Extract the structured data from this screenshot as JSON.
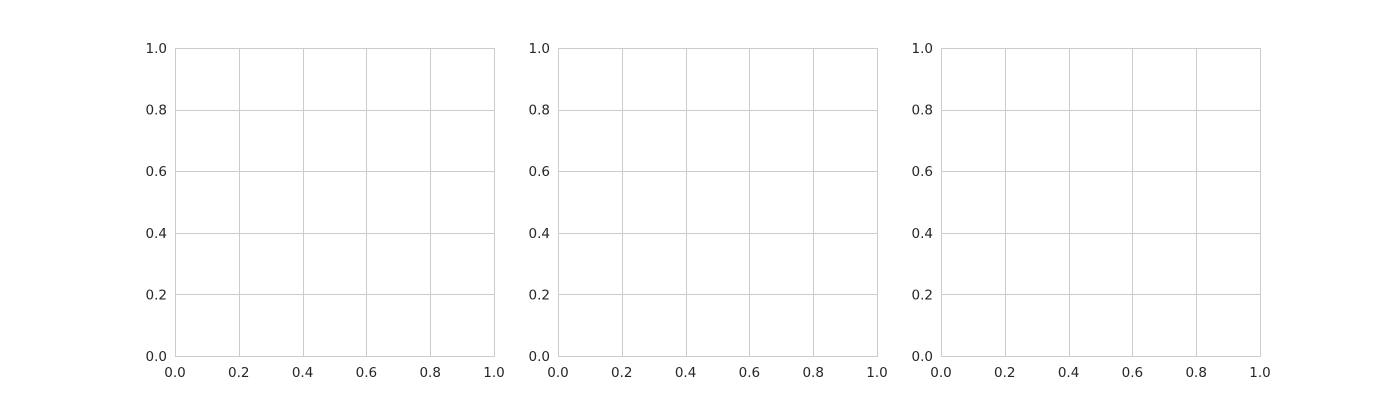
{
  "chart_data": [
    {
      "type": "line",
      "title": "",
      "xlabel": "",
      "ylabel": "",
      "xlim": [
        0,
        1
      ],
      "ylim": [
        0,
        1
      ],
      "xticks": [
        "0.0",
        "0.2",
        "0.4",
        "0.6",
        "0.8",
        "1.0"
      ],
      "yticks": [
        "0.0",
        "0.2",
        "0.4",
        "0.6",
        "0.8",
        "1.0"
      ],
      "grid": true,
      "series": []
    },
    {
      "type": "line",
      "title": "",
      "xlabel": "",
      "ylabel": "",
      "xlim": [
        0,
        1
      ],
      "ylim": [
        0,
        1
      ],
      "xticks": [
        "0.0",
        "0.2",
        "0.4",
        "0.6",
        "0.8",
        "1.0"
      ],
      "yticks": [
        "0.0",
        "0.2",
        "0.4",
        "0.6",
        "0.8",
        "1.0"
      ],
      "grid": true,
      "series": []
    },
    {
      "type": "line",
      "title": "",
      "xlabel": "",
      "ylabel": "",
      "xlim": [
        0,
        1
      ],
      "ylim": [
        0,
        1
      ],
      "xticks": [
        "0.0",
        "0.2",
        "0.4",
        "0.6",
        "0.8",
        "1.0"
      ],
      "yticks": [
        "0.0",
        "0.2",
        "0.4",
        "0.6",
        "0.8",
        "1.0"
      ],
      "grid": true,
      "series": []
    }
  ],
  "colors": {
    "background": "#ffffff",
    "grid": "#cccccc",
    "spine": "#cccccc",
    "tick_text": "#262626"
  }
}
